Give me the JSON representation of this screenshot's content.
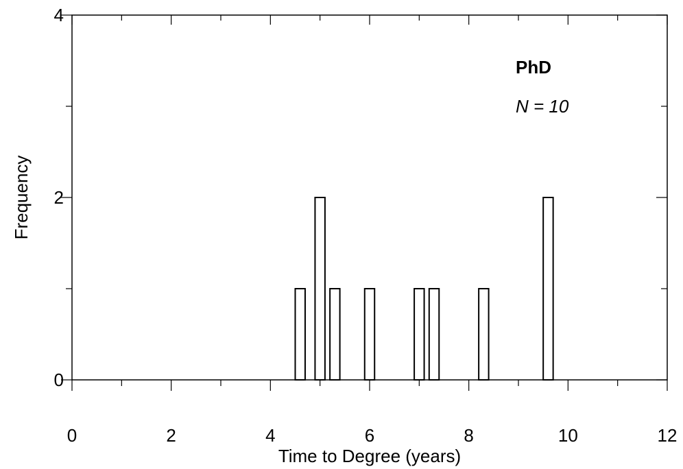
{
  "chart_data": {
    "type": "bar",
    "title": "",
    "xlabel": "Time to Degree (years)",
    "ylabel": "Frequency",
    "xlim": [
      0,
      12
    ],
    "ylim": [
      0,
      4
    ],
    "x_ticks": [
      0,
      2,
      4,
      6,
      8,
      10,
      12
    ],
    "y_ticks": [
      0,
      2,
      4
    ],
    "x_minor_ticks": [
      1,
      3,
      5,
      7,
      9,
      11
    ],
    "y_minor_ticks": [
      1,
      3
    ],
    "bar_width": 0.2,
    "bars": [
      {
        "x": 4.6,
        "value": 1
      },
      {
        "x": 5.0,
        "value": 2
      },
      {
        "x": 5.3,
        "value": 1
      },
      {
        "x": 6.0,
        "value": 1
      },
      {
        "x": 7.0,
        "value": 1
      },
      {
        "x": 7.3,
        "value": 1
      },
      {
        "x": 8.3,
        "value": 1
      },
      {
        "x": 9.6,
        "value": 2
      }
    ],
    "annotations": {
      "title": "PhD",
      "n_label": "N = 10"
    },
    "grid": false,
    "legend": "none"
  }
}
